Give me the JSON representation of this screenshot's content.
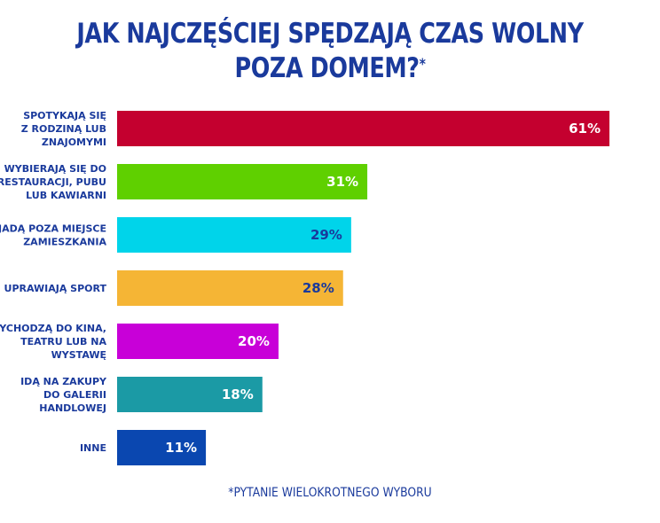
{
  "title": {
    "line1": "JAK NAJCZĘŚCIEJ SPĘDZAJĄ CZAS WOLNY",
    "line2": "POZA DOMEM?",
    "marker": "*"
  },
  "footnote": "*PYTANIE WIELOKROTNEGO WYBORU",
  "chart_data": {
    "type": "bar",
    "orientation": "horizontal",
    "categories": [
      [
        "SPOTYKAJĄ SIĘ",
        "Z RODZINĄ LUB",
        "ZNAJOMYMI"
      ],
      [
        "WYBIERAJĄ SIĘ DO",
        "RESTAURACJI, PUBU",
        "LUB KAWIARNI"
      ],
      [
        "JADĄ POZA MIEJSCE",
        "ZAMIESZKANIA"
      ],
      [
        "UPRAWIAJĄ SPORT"
      ],
      [
        "WYCHODZĄ DO KINA,",
        "TEATRU LUB NA",
        "WYSTAWĘ"
      ],
      [
        "IDĄ NA ZAKUPY",
        "DO GALERII",
        "HANDLOWEJ"
      ],
      [
        "INNE"
      ]
    ],
    "values": [
      61,
      31,
      29,
      28,
      20,
      18,
      11
    ],
    "value_labels": [
      "61%",
      "31%",
      "29%",
      "28%",
      "20%",
      "18%",
      "11%"
    ],
    "unit": "%",
    "bar_colors": [
      "#c4002f",
      "#5fd000",
      "#00d4ea",
      "#f5b535",
      "#c800d8",
      "#1b9aa5",
      "#0a47b0"
    ],
    "label_colors": [
      "#ffffff",
      "#ffffff",
      "#1a3a9c",
      "#1a3a9c",
      "#ffffff",
      "#ffffff",
      "#ffffff"
    ],
    "xlim": [
      0,
      61
    ],
    "grid": false,
    "legend": "none"
  }
}
